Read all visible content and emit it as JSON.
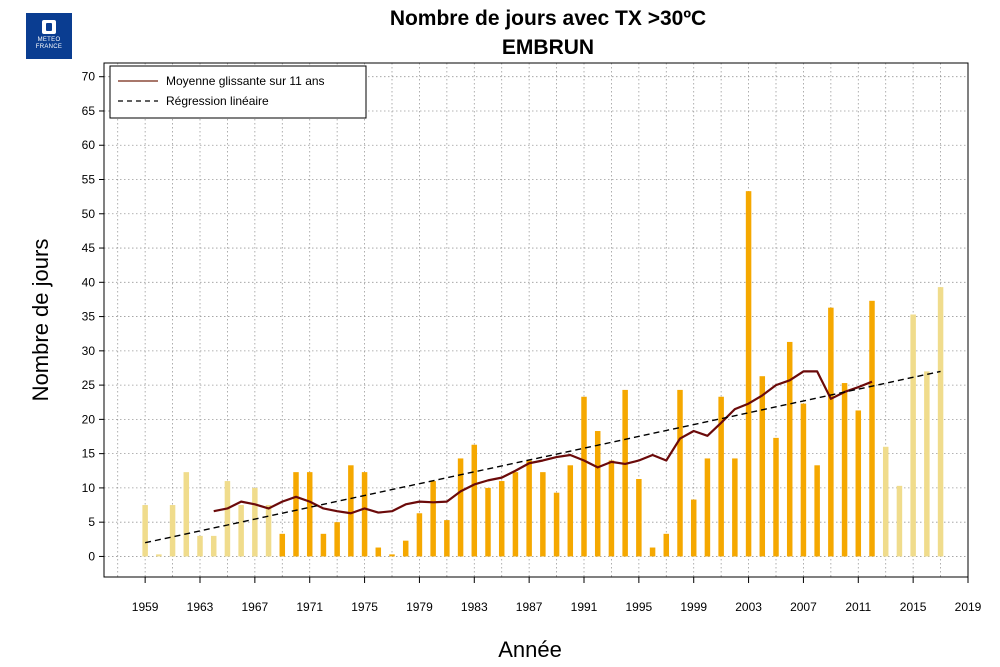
{
  "logo": {
    "text_line1": "METEO",
    "text_line2": "FRANCE"
  },
  "chart_data": {
    "type": "bar",
    "title": "Nombre de jours avec TX >30ºC",
    "subtitle": "EMBRUN",
    "xlabel": "Année",
    "ylabel": "Nombre de jours",
    "xlim": [
      1956,
      2019
    ],
    "ylim": [
      -3,
      72
    ],
    "x_ticks": [
      1959,
      1963,
      1967,
      1971,
      1975,
      1979,
      1983,
      1987,
      1991,
      1995,
      1999,
      2003,
      2007,
      2011,
      2015,
      2019
    ],
    "y_ticks": [
      0,
      5,
      10,
      15,
      20,
      25,
      30,
      35,
      40,
      45,
      50,
      55,
      60,
      65,
      70
    ],
    "grid": true,
    "legend_position": "top-left",
    "colors": {
      "bar_main": "#f5a800",
      "bar_light": "#f0dc8c",
      "moving_average": "#6b0a0a",
      "regression": "#000000"
    },
    "years": [
      1959,
      1960,
      1961,
      1962,
      1963,
      1964,
      1965,
      1966,
      1967,
      1968,
      1969,
      1970,
      1971,
      1972,
      1973,
      1974,
      1975,
      1976,
      1977,
      1978,
      1979,
      1980,
      1981,
      1982,
      1983,
      1984,
      1985,
      1986,
      1987,
      1988,
      1989,
      1990,
      1991,
      1992,
      1993,
      1994,
      1995,
      1996,
      1997,
      1998,
      1999,
      2000,
      2001,
      2002,
      2003,
      2004,
      2005,
      2006,
      2007,
      2008,
      2009,
      2010,
      2011,
      2012,
      2013,
      2014,
      2015,
      2016,
      2017
    ],
    "values": [
      7.5,
      0.3,
      7.5,
      12.3,
      3,
      3,
      11,
      7.5,
      10,
      7.5,
      3.3,
      12.3,
      12.3,
      3.3,
      5,
      13.3,
      12.3,
      1.3,
      0.3,
      2.3,
      6.3,
      11,
      5.3,
      14.3,
      16.3,
      10,
      11,
      12.3,
      14,
      12.3,
      9.3,
      13.3,
      23.3,
      18.3,
      14,
      24.3,
      11.3,
      1.3,
      3.3,
      24.3,
      8.3,
      14.3,
      23.3,
      14.3,
      53.3,
      26.3,
      17.3,
      31.3,
      22.3,
      13.3,
      36.3,
      25.3,
      21.3,
      37.3,
      16,
      10.3,
      35.3,
      27,
      39.3
    ],
    "light_years": [
      1959,
      1960,
      1961,
      1962,
      1963,
      1964,
      1965,
      1966,
      1967,
      1968,
      2013,
      2014,
      2015,
      2016,
      2017
    ],
    "series": [
      {
        "name": "Moyenne glissante sur 11 ans",
        "type": "line",
        "x": [
          1964,
          1965,
          1966,
          1967,
          1968,
          1969,
          1970,
          1971,
          1972,
          1973,
          1974,
          1975,
          1976,
          1977,
          1978,
          1979,
          1980,
          1981,
          1982,
          1983,
          1984,
          1985,
          1986,
          1987,
          1988,
          1989,
          1990,
          1991,
          1992,
          1993,
          1994,
          1995,
          1996,
          1997,
          1998,
          1999,
          2000,
          2001,
          2002,
          2003,
          2004,
          2005,
          2006,
          2007,
          2008,
          2009,
          2010,
          2011,
          2012
        ],
        "y": [
          6.6,
          7,
          8,
          7.6,
          7,
          8,
          8.7,
          8,
          7,
          6.6,
          6.3,
          7,
          6.4,
          6.6,
          7.6,
          8,
          7.9,
          8,
          9.5,
          10.5,
          11.1,
          11.5,
          12.5,
          13.6,
          14,
          14.5,
          14.8,
          14,
          13,
          13.8,
          13.5,
          14,
          14.8,
          14,
          17.2,
          18.3,
          17.6,
          19.5,
          21.5,
          22.3,
          23.5,
          25,
          25.7,
          27,
          27,
          23,
          24,
          24.7,
          25.5
        ]
      },
      {
        "name": "Régression linéaire",
        "type": "line",
        "style": "dashed",
        "x": [
          1959,
          2017
        ],
        "y": [
          2,
          27
        ]
      }
    ]
  }
}
